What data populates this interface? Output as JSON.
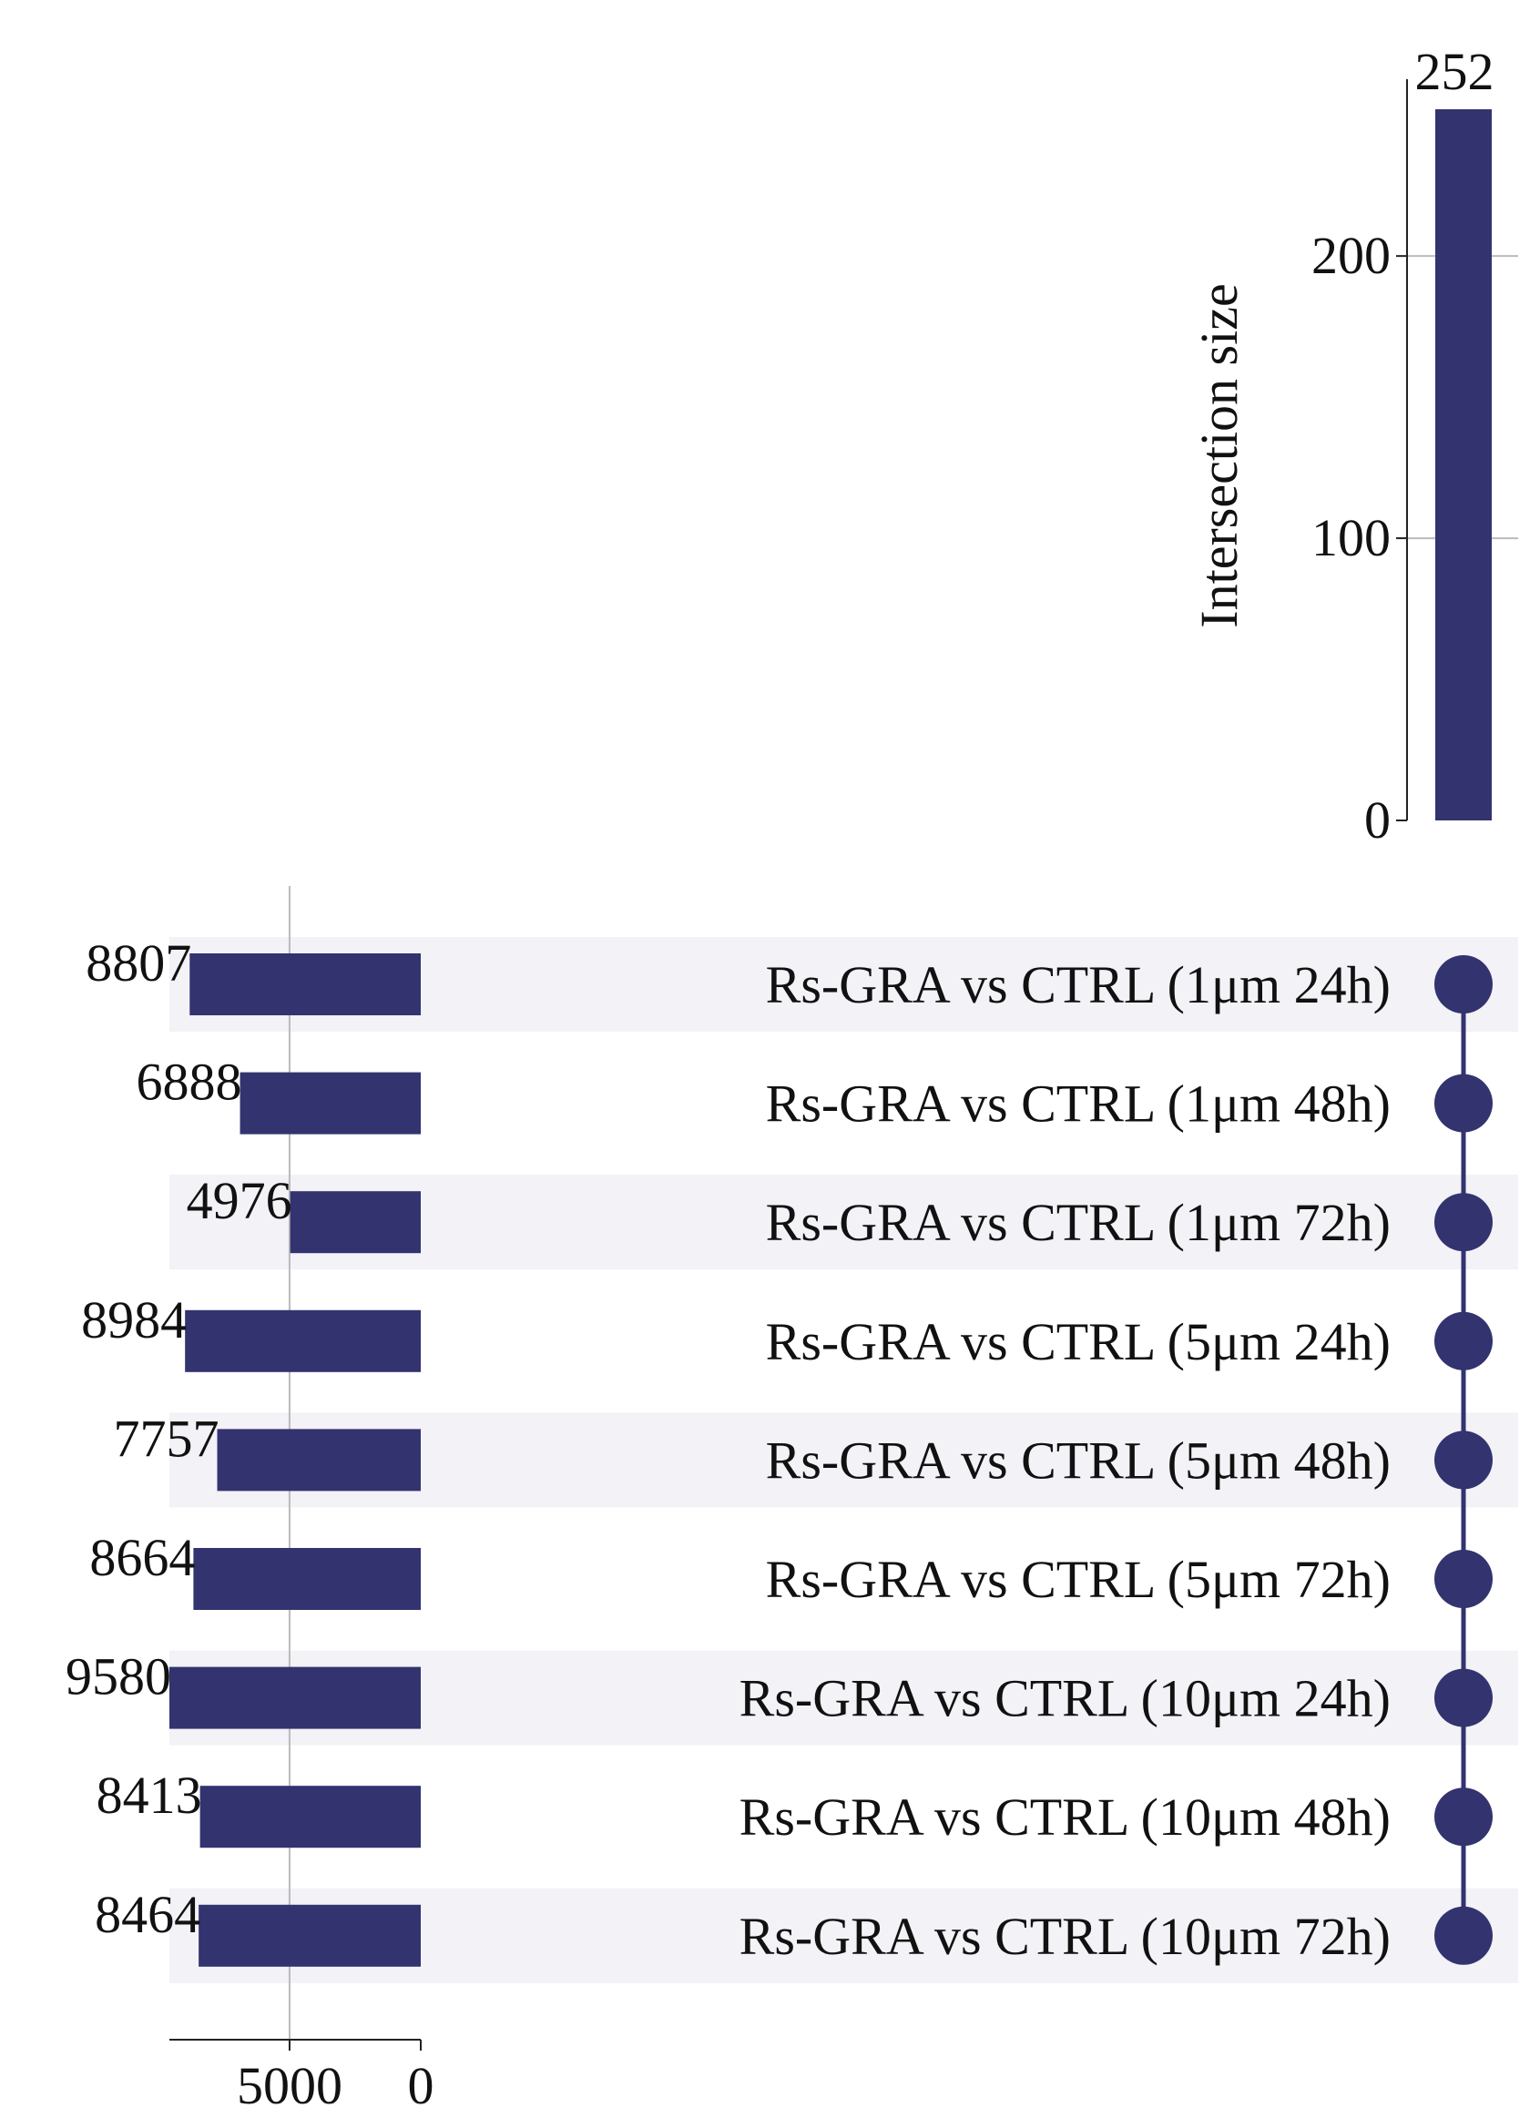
{
  "chart_data": {
    "type": "upset",
    "intersection": {
      "ylabel": "Intersection size",
      "ylim": [
        0,
        252
      ],
      "yticks": [
        0,
        100,
        200
      ],
      "values": [
        252
      ],
      "value_labels": [
        "252"
      ],
      "member_sets": [
        0,
        1,
        2,
        3,
        4,
        5,
        6,
        7,
        8
      ]
    },
    "sets": {
      "names": [
        "Rs-GRA vs CTRL (1μm 24h)",
        "Rs-GRA vs CTRL (1μm 48h)",
        "Rs-GRA vs CTRL (1μm 72h)",
        "Rs-GRA vs CTRL (5μm 24h)",
        "Rs-GRA vs CTRL (5μm 48h)",
        "Rs-GRA vs CTRL (5μm 72h)",
        "Rs-GRA vs CTRL (10μm 24h)",
        "Rs-GRA vs CTRL (10μm 48h)",
        "Rs-GRA vs CTRL (10μm 72h)"
      ],
      "sizes": [
        8807,
        6888,
        4976,
        8984,
        7757,
        8664,
        9580,
        8413,
        8464
      ],
      "size_labels": [
        "8807",
        "6888",
        "4976",
        "8984",
        "7757",
        "8664",
        "9580",
        "8413",
        "8464"
      ],
      "xticks": [
        5000,
        0
      ],
      "xtick_labels": [
        "5000",
        "0"
      ],
      "xlim": [
        9580,
        0
      ]
    },
    "colors": {
      "bar": "#32336f",
      "stripe": "#f2f2f7",
      "axis": "#222222",
      "grid": "#bbbbbb"
    },
    "grid": true
  }
}
